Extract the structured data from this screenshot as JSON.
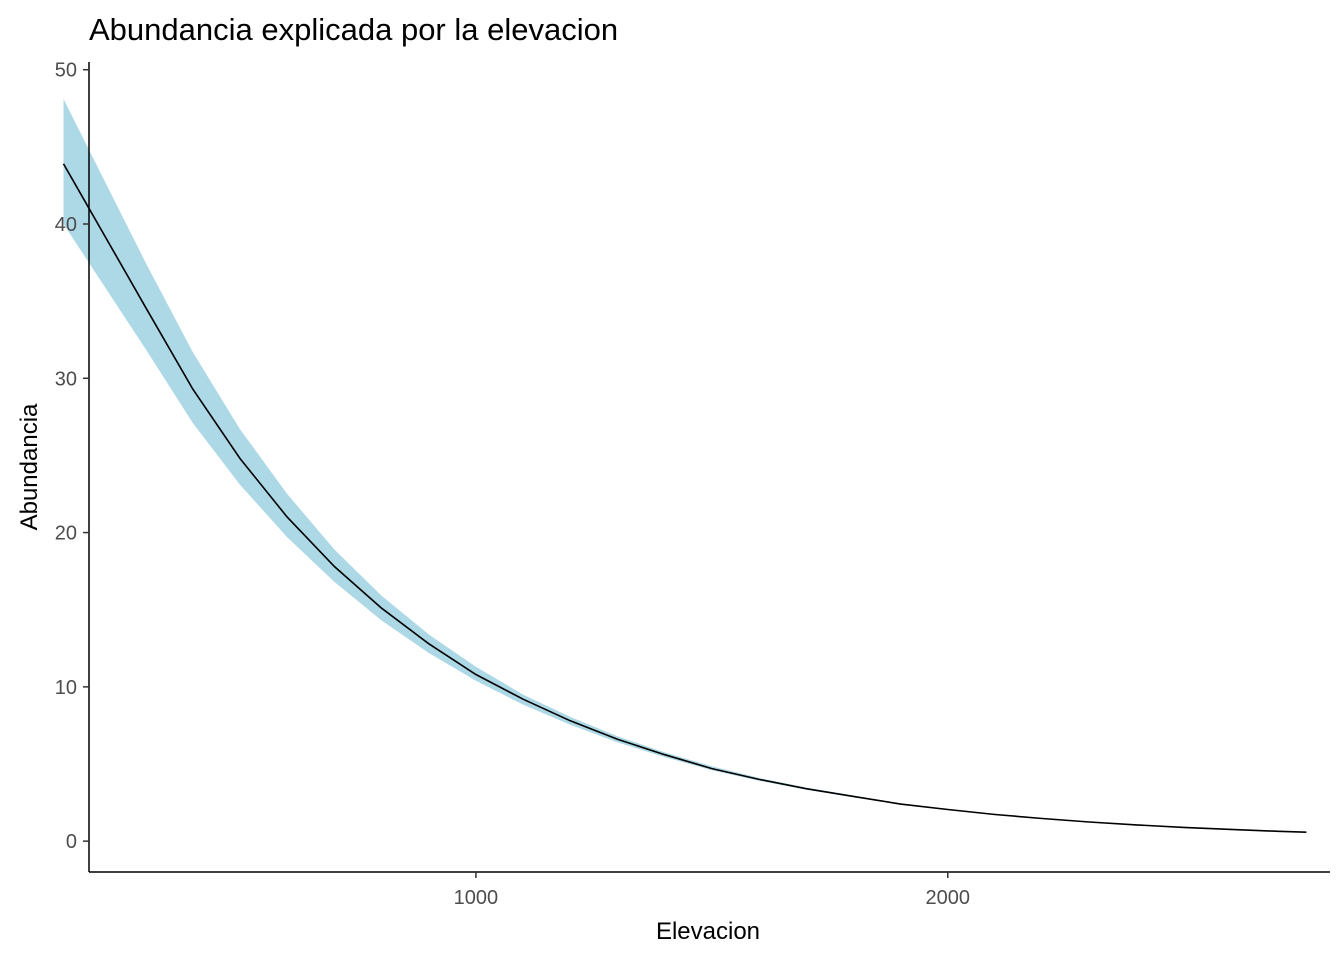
{
  "chart_data": {
    "type": "line",
    "title": "Abundancia explicada por la elevacion",
    "xlabel": "Elevacion",
    "ylabel": "Abundancia",
    "xlim": [
      180,
      2810
    ],
    "ylim": [
      -2,
      50.5
    ],
    "x_ticks": [
      1000,
      2000
    ],
    "y_ticks": [
      0,
      10,
      20,
      30,
      40,
      50
    ],
    "grid": false,
    "legend": "none",
    "colors": {
      "line": "#000000",
      "ribbon": "#add8e6",
      "axis": "#000000"
    },
    "series": [
      {
        "x": [
          126,
          300,
          400,
          500,
          600,
          700,
          800,
          900,
          1000,
          1100,
          1200,
          1300,
          1400,
          1500,
          1600,
          1700,
          1800,
          1900,
          2000,
          2100,
          2200,
          2300,
          2400,
          2500,
          2600,
          2700,
          2760
        ],
        "y": [
          43.9,
          34.6,
          29.3,
          24.8,
          21.0,
          17.8,
          15.1,
          12.8,
          10.8,
          9.2,
          7.8,
          6.6,
          5.6,
          4.7,
          4.0,
          3.4,
          2.9,
          2.4,
          2.05,
          1.73,
          1.47,
          1.24,
          1.05,
          0.89,
          0.76,
          0.64,
          0.58
        ],
        "lower": [
          40.0,
          31.9,
          27.1,
          23.1,
          19.7,
          16.8,
          14.3,
          12.2,
          10.4,
          8.85,
          7.55,
          6.4,
          5.45,
          4.6,
          3.92,
          3.33,
          2.84,
          2.36,
          2.0,
          1.7,
          1.45,
          1.22,
          1.03,
          0.87,
          0.74,
          0.63,
          0.57
        ],
        "upper": [
          48.1,
          37.5,
          31.7,
          26.7,
          22.5,
          18.9,
          15.9,
          13.4,
          11.3,
          9.5,
          8.05,
          6.8,
          5.75,
          4.85,
          4.1,
          3.47,
          2.96,
          2.44,
          2.1,
          1.76,
          1.49,
          1.26,
          1.07,
          0.91,
          0.78,
          0.65,
          0.59
        ]
      }
    ]
  }
}
